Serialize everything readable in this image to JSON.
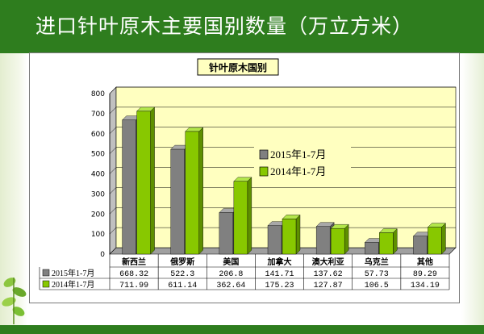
{
  "slide": {
    "title": "进口针叶原木主要国别数量（万立方米）"
  },
  "colors": {
    "title_bar": "#2e7d1e",
    "plot_bg": "#ffffc0",
    "series_2015": "#808080",
    "series_2014": "#88c800"
  },
  "chart_data": {
    "type": "bar",
    "title": "针叶原木国别",
    "categories": [
      "新西兰",
      "俄罗斯",
      "美国",
      "加拿大",
      "澳大利亚",
      "乌克兰",
      "其他"
    ],
    "series": [
      {
        "name": "2015年1-7月",
        "values": [
          668.32,
          522.3,
          206.8,
          141.71,
          137.62,
          57.73,
          89.29
        ],
        "labels": [
          "668.32",
          "522.3",
          "206.8",
          "141.71",
          "137.62",
          "57.73",
          "89.29"
        ]
      },
      {
        "name": "2014年1-7月",
        "values": [
          711.99,
          611.14,
          362.64,
          175.23,
          127.87,
          106.5,
          134.19
        ],
        "labels": [
          "711.99",
          "611.14",
          "362.64",
          "175.23",
          "127.87",
          "106.5",
          "134.19"
        ]
      }
    ],
    "ylim": [
      0,
      800
    ],
    "yticks": [
      "0",
      "100",
      "200",
      "300",
      "400",
      "500",
      "600",
      "700",
      "800"
    ],
    "grid": true,
    "legend": "inside-right",
    "data_table": true
  }
}
